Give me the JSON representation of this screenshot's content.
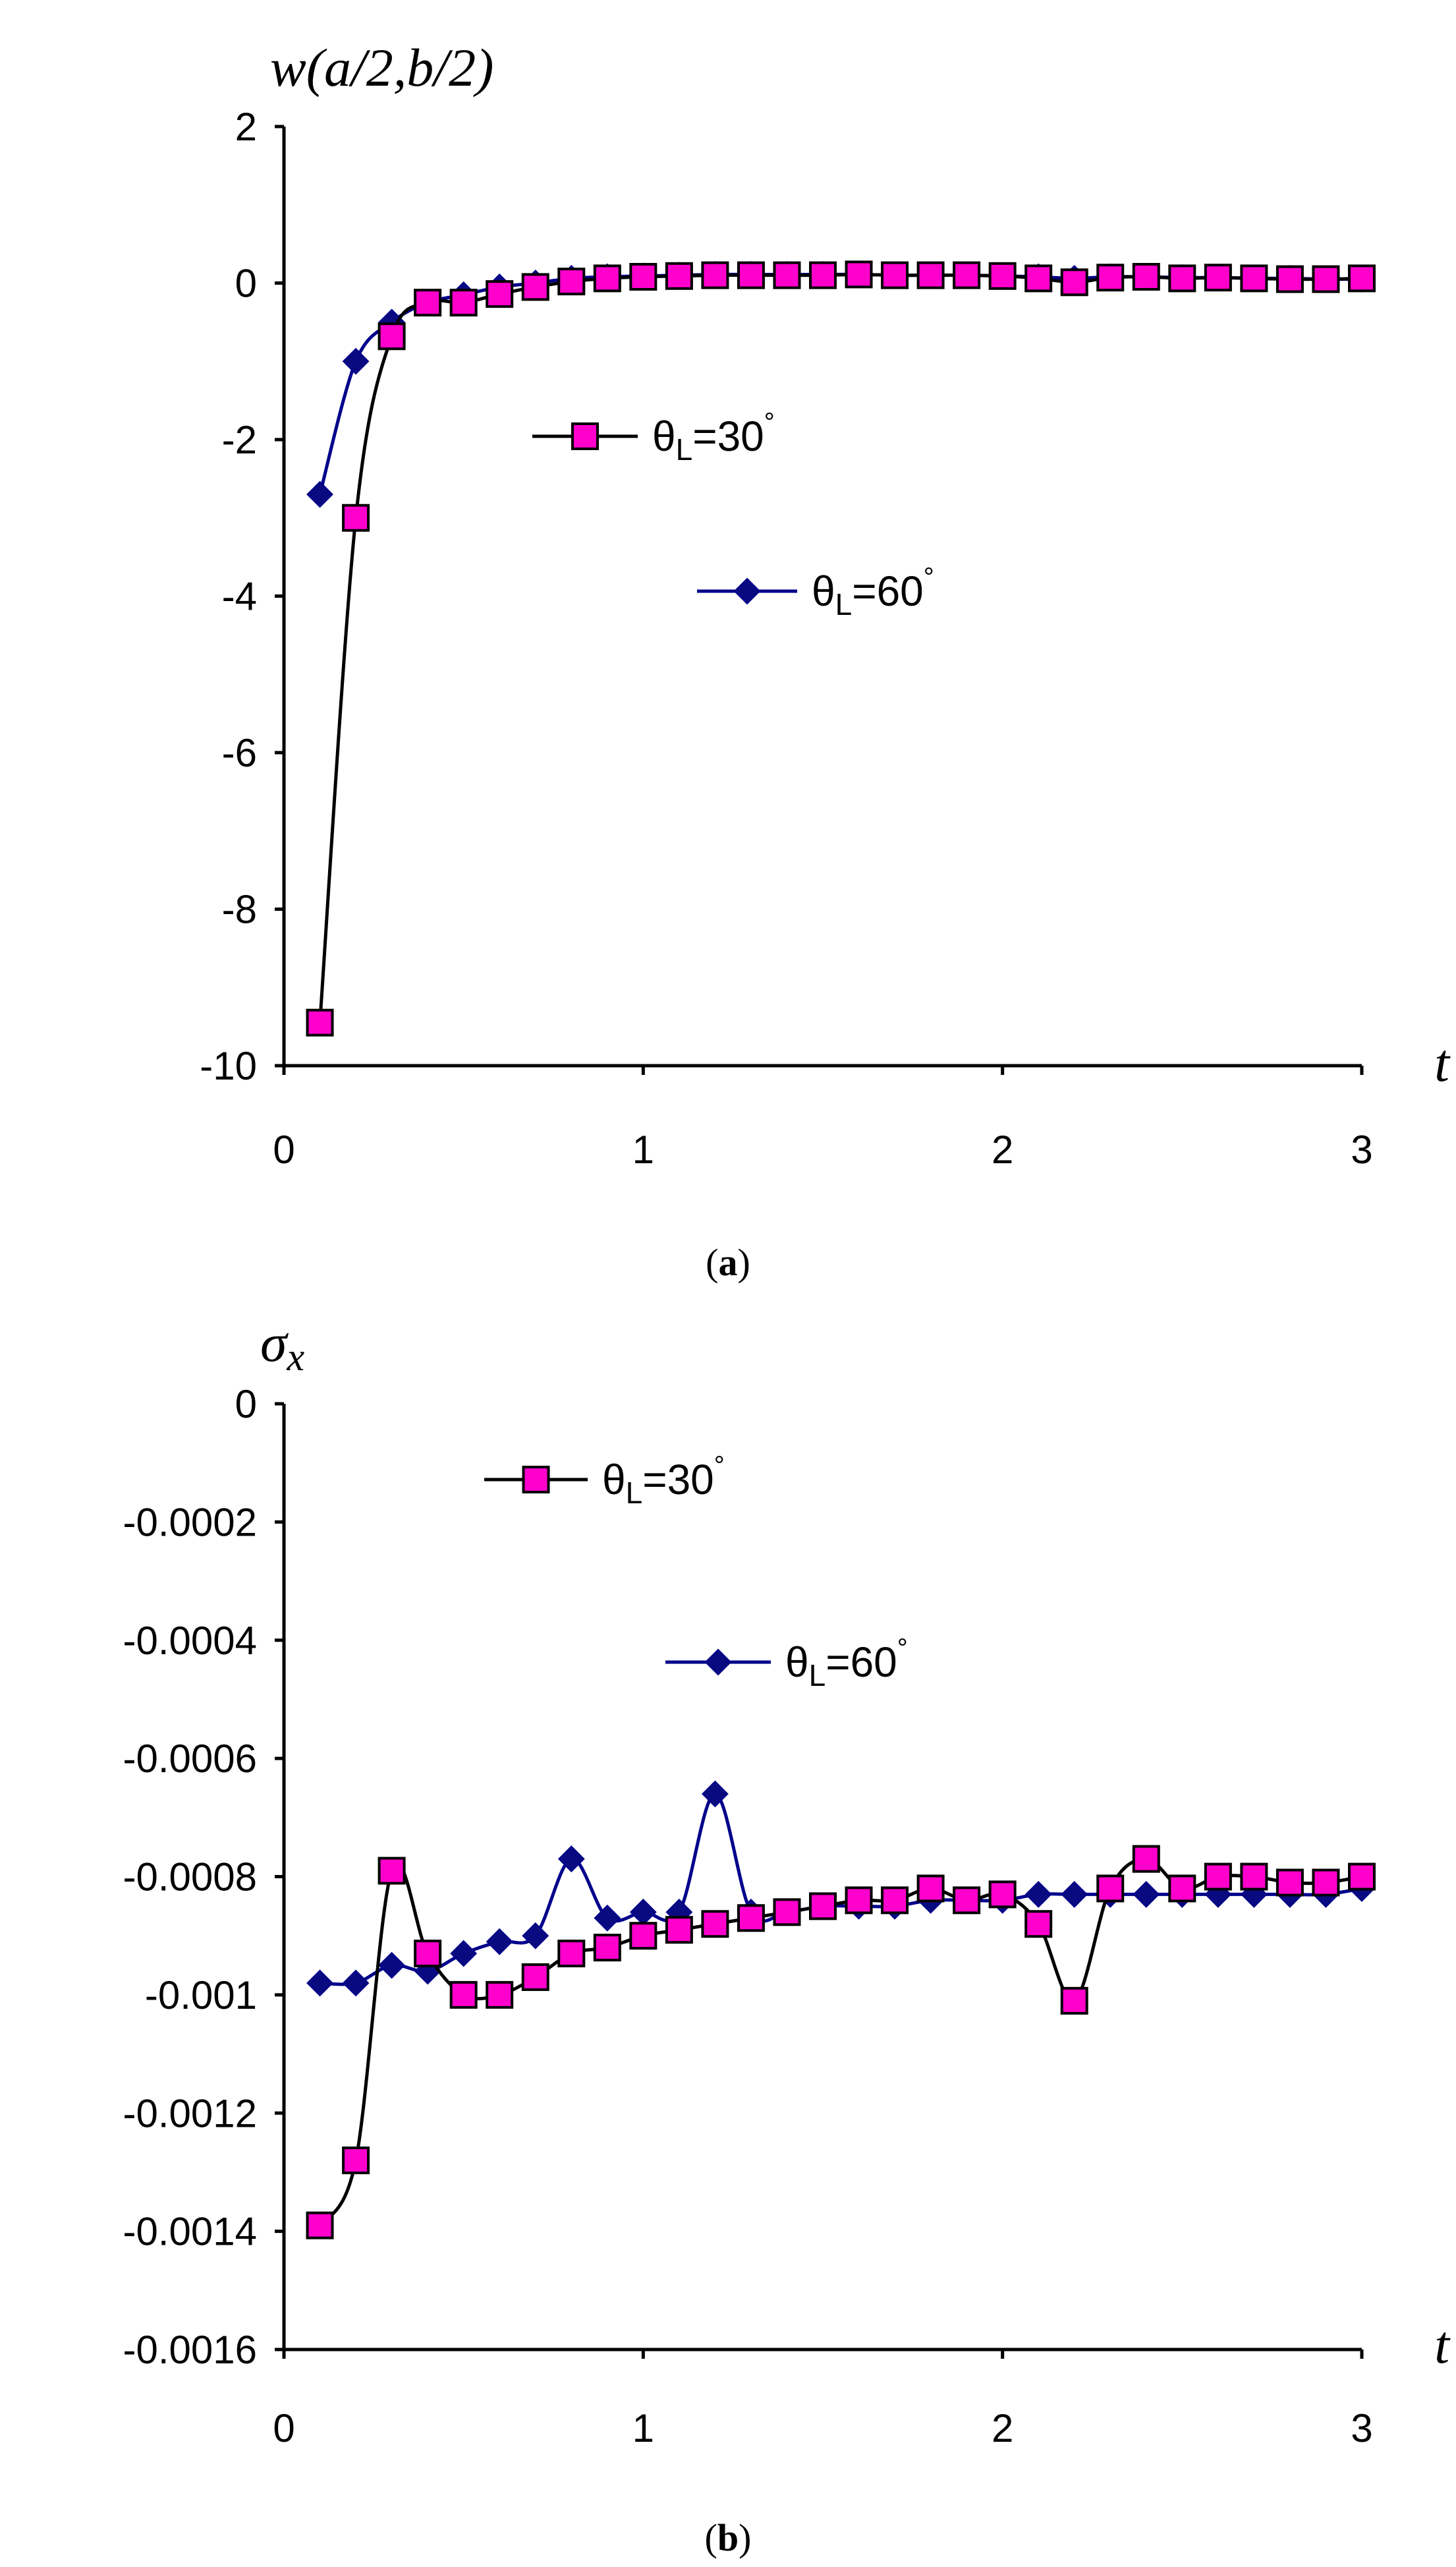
{
  "chart_data": [
    {
      "type": "line",
      "caption_letter": "a",
      "ylabel": "w(a/2,b/2)",
      "xlabel": "t",
      "xlim": [
        0,
        3
      ],
      "ylim": [
        -10,
        2
      ],
      "xticks": [
        "0",
        "1",
        "2",
        "3"
      ],
      "yticks": [
        "2",
        "0",
        "-2",
        "-4",
        "-6",
        "-8",
        "-10"
      ],
      "x": [
        0.1,
        0.2,
        0.3,
        0.4,
        0.5,
        0.6,
        0.7,
        0.8,
        0.9,
        1.0,
        1.1,
        1.2,
        1.3,
        1.4,
        1.5,
        1.6,
        1.7,
        1.8,
        1.9,
        2.0,
        2.1,
        2.2,
        2.3,
        2.4,
        2.5,
        2.6,
        2.7,
        2.8,
        2.9,
        3.0
      ],
      "series": [
        {
          "name_main": "θ",
          "name_sub": "L",
          "name_tail": "=30",
          "name_sup": "°",
          "marker": "square",
          "line_color": "#000000",
          "marker_color": "#ff00cc",
          "values": [
            -9.45,
            -3.0,
            -0.68,
            -0.25,
            -0.25,
            -0.14,
            -0.05,
            0.02,
            0.06,
            0.08,
            0.09,
            0.1,
            0.1,
            0.1,
            0.1,
            0.11,
            0.1,
            0.1,
            0.1,
            0.09,
            0.06,
            0.01,
            0.07,
            0.08,
            0.06,
            0.07,
            0.06,
            0.05,
            0.05,
            0.06
          ]
        },
        {
          "name_main": "θ",
          "name_sub": "L",
          "name_tail": "=60",
          "name_sup": "°",
          "marker": "diamond",
          "line_color": "#00008b",
          "marker_color": "#0a0a80",
          "values": [
            -2.7,
            -1.0,
            -0.5,
            -0.25,
            -0.15,
            -0.05,
            0.0,
            0.06,
            0.08,
            0.09,
            0.1,
            0.11,
            0.11,
            0.11,
            0.11,
            0.11,
            0.1,
            0.1,
            0.1,
            0.09,
            0.08,
            0.06,
            0.08,
            0.08,
            0.07,
            0.07,
            0.06,
            0.06,
            0.05,
            0.05
          ]
        }
      ]
    },
    {
      "type": "line",
      "caption_letter": "b",
      "ylabel_main": "σ",
      "ylabel_sub": "x",
      "xlabel": "t",
      "xlim": [
        0,
        3
      ],
      "ylim": [
        -0.0016,
        0
      ],
      "xticks": [
        "0",
        "1",
        "2",
        "3"
      ],
      "yticks": [
        "0",
        "-0.0002",
        "-0.0004",
        "-0.0006",
        "-0.0008",
        "-0.001",
        "-0.0012",
        "-0.0014",
        "-0.0016"
      ],
      "x": [
        0.1,
        0.2,
        0.3,
        0.4,
        0.5,
        0.6,
        0.7,
        0.8,
        0.9,
        1.0,
        1.1,
        1.2,
        1.3,
        1.4,
        1.5,
        1.6,
        1.7,
        1.8,
        1.9,
        2.0,
        2.1,
        2.2,
        2.3,
        2.4,
        2.5,
        2.6,
        2.7,
        2.8,
        2.9,
        3.0
      ],
      "series": [
        {
          "name_main": "θ",
          "name_sub": "L",
          "name_tail": "=30",
          "name_sup": "°",
          "marker": "square",
          "line_color": "#000000",
          "marker_color": "#ff00cc",
          "values": [
            -0.00139,
            -0.00128,
            -0.00079,
            -0.00093,
            -0.001,
            -0.001,
            -0.00097,
            -0.00093,
            -0.00092,
            -0.0009,
            -0.00089,
            -0.00088,
            -0.00087,
            -0.00086,
            -0.00085,
            -0.00084,
            -0.00084,
            -0.00082,
            -0.00084,
            -0.00083,
            -0.00088,
            -0.00101,
            -0.00082,
            -0.00077,
            -0.00082,
            -0.0008,
            -0.0008,
            -0.00081,
            -0.00081,
            -0.0008
          ]
        },
        {
          "name_main": "θ",
          "name_sub": "L",
          "name_tail": "=60",
          "name_sup": "°",
          "marker": "diamond",
          "line_color": "#00008b",
          "marker_color": "#0a0a80",
          "values": [
            -0.00098,
            -0.00098,
            -0.00095,
            -0.00096,
            -0.00093,
            -0.00091,
            -0.0009,
            -0.00077,
            -0.00087,
            -0.00086,
            -0.00086,
            -0.00066,
            -0.00086,
            -0.00086,
            -0.00085,
            -0.00085,
            -0.00085,
            -0.00084,
            -0.00084,
            -0.00084,
            -0.00083,
            -0.00083,
            -0.00083,
            -0.00083,
            -0.00083,
            -0.00083,
            -0.00083,
            -0.00083,
            -0.00083,
            -0.00082
          ]
        }
      ]
    }
  ]
}
